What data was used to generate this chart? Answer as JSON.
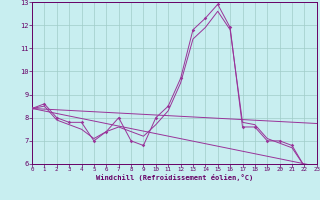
{
  "xlabel": "Windchill (Refroidissement éolien,°C)",
  "x": [
    0,
    1,
    2,
    3,
    4,
    5,
    6,
    7,
    8,
    9,
    10,
    11,
    12,
    13,
    14,
    15,
    16,
    17,
    18,
    19,
    20,
    21,
    22,
    23
  ],
  "line_main": [
    8.4,
    8.6,
    8.0,
    7.8,
    7.8,
    7.0,
    7.4,
    8.0,
    7.0,
    6.8,
    8.0,
    8.5,
    9.7,
    11.8,
    12.3,
    12.9,
    11.9,
    7.6,
    7.6,
    7.0,
    7.0,
    6.8,
    5.9,
    5.8
  ],
  "line_smooth": [
    8.4,
    8.5,
    7.9,
    7.7,
    7.5,
    7.1,
    7.4,
    7.6,
    7.4,
    7.2,
    7.7,
    8.3,
    9.5,
    11.4,
    11.9,
    12.6,
    11.8,
    7.8,
    7.7,
    7.1,
    6.9,
    6.7,
    5.9,
    5.8
  ],
  "trend1_x": [
    0,
    23
  ],
  "trend1_y": [
    8.4,
    7.75
  ],
  "trend2_x": [
    0,
    23
  ],
  "trend2_y": [
    8.4,
    5.9
  ],
  "background_color": "#c8eef0",
  "grid_color": "#a0ccc8",
  "line_color": "#993399",
  "axis_color": "#660066",
  "ylim": [
    6,
    13
  ],
  "xlim": [
    0,
    23
  ],
  "yticks": [
    6,
    7,
    8,
    9,
    10,
    11,
    12,
    13
  ],
  "xticks": [
    0,
    1,
    2,
    3,
    4,
    5,
    6,
    7,
    8,
    9,
    10,
    11,
    12,
    13,
    14,
    15,
    16,
    17,
    18,
    19,
    20,
    21,
    22,
    23
  ]
}
